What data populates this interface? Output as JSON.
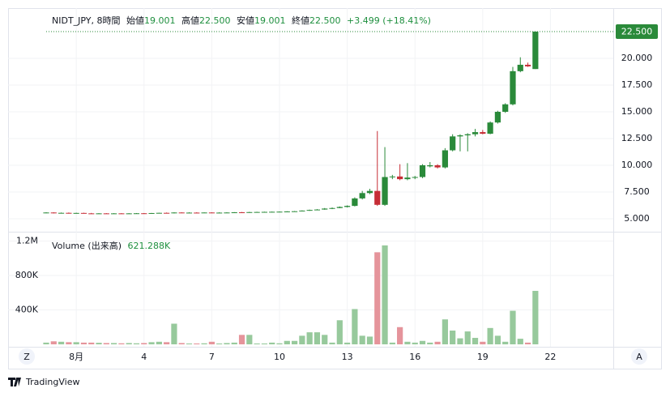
{
  "header": {
    "symbol": "NIDT_JPY, 8時間",
    "open_label": "始値",
    "open": "19.001",
    "high_label": "高値",
    "high": "22.500",
    "low_label": "安値",
    "low": "19.001",
    "close_label": "終値",
    "close": "22.500",
    "change": "+3.499 (+18.41%)"
  },
  "volume_legend": {
    "label": "Volume (出来高)",
    "value": "621.288K"
  },
  "buttons": {
    "left": "Z",
    "right": "A"
  },
  "brand": "TradingView",
  "chart_data": {
    "type": "candlestick",
    "categories": [
      null,
      null,
      null,
      null,
      "8月",
      null,
      null,
      null,
      null,
      null,
      null,
      null,
      null,
      "4",
      null,
      null,
      null,
      null,
      null,
      null,
      null,
      null,
      "7",
      null,
      null,
      null,
      null,
      null,
      null,
      null,
      null,
      "10",
      null,
      null,
      null,
      null,
      null,
      null,
      null,
      null,
      "13",
      null,
      null,
      null,
      null,
      null,
      null,
      null,
      null,
      "16",
      null,
      null,
      null,
      null,
      null,
      null,
      null,
      null,
      "19",
      null,
      null,
      null,
      null,
      null,
      null,
      null,
      null,
      "22"
    ],
    "open": [
      5.56,
      5.58,
      5.52,
      5.55,
      5.5,
      5.54,
      5.5,
      5.48,
      5.5,
      5.48,
      5.5,
      5.49,
      5.5,
      5.51,
      5.5,
      5.53,
      5.55,
      5.54,
      5.58,
      5.56,
      5.57,
      5.55,
      5.58,
      5.55,
      5.57,
      5.58,
      5.6,
      5.57,
      5.62,
      5.63,
      5.64,
      5.65,
      5.66,
      5.68,
      5.7,
      5.76,
      5.82,
      5.86,
      5.95,
      6.0,
      6.1,
      6.2,
      6.9,
      7.4,
      7.6,
      6.3,
      8.9,
      8.95,
      8.7,
      8.85,
      8.9,
      9.9,
      10.0,
      9.8,
      11.4,
      12.7,
      12.8,
      12.9,
      13.1,
      12.95,
      14.0,
      15.0,
      15.7,
      18.8,
      19.4,
      19.001,
      null,
      null
    ],
    "high": [
      5.6,
      5.6,
      5.58,
      5.58,
      5.56,
      5.56,
      5.54,
      5.52,
      5.52,
      5.52,
      5.52,
      5.52,
      5.53,
      5.53,
      5.54,
      5.56,
      5.58,
      5.6,
      5.6,
      5.6,
      5.6,
      5.59,
      5.6,
      5.6,
      5.6,
      5.62,
      5.63,
      5.64,
      5.65,
      5.66,
      5.67,
      5.68,
      5.7,
      5.72,
      5.78,
      5.85,
      5.9,
      6.0,
      6.05,
      6.15,
      6.25,
      7.0,
      7.6,
      7.8,
      13.2,
      11.7,
      9.1,
      10.1,
      10.2,
      9.0,
      10.1,
      10.3,
      10.1,
      11.6,
      12.9,
      12.9,
      13.0,
      13.4,
      13.3,
      14.1,
      15.1,
      15.8,
      19.2,
      20.1,
      19.6,
      22.5,
      null,
      null
    ],
    "low": [
      5.52,
      5.5,
      5.5,
      5.48,
      5.48,
      5.48,
      5.46,
      5.46,
      5.46,
      5.45,
      5.47,
      5.46,
      5.48,
      5.48,
      5.48,
      5.5,
      5.52,
      5.5,
      5.54,
      5.53,
      5.54,
      5.53,
      5.54,
      5.53,
      5.55,
      5.55,
      5.55,
      5.55,
      5.59,
      5.6,
      5.61,
      5.62,
      5.63,
      5.65,
      5.68,
      5.74,
      5.8,
      5.84,
      5.9,
      5.98,
      6.05,
      6.15,
      6.8,
      7.3,
      6.2,
      6.2,
      8.7,
      8.6,
      8.6,
      8.7,
      8.8,
      9.8,
      9.7,
      9.7,
      11.3,
      11.3,
      11.3,
      12.7,
      12.9,
      12.9,
      13.9,
      14.9,
      15.6,
      18.7,
      19.2,
      19.001,
      null,
      null
    ],
    "close": [
      5.58,
      5.52,
      5.55,
      5.5,
      5.54,
      5.5,
      5.48,
      5.5,
      5.48,
      5.5,
      5.49,
      5.5,
      5.51,
      5.5,
      5.53,
      5.55,
      5.54,
      5.58,
      5.56,
      5.57,
      5.55,
      5.58,
      5.55,
      5.57,
      5.58,
      5.6,
      5.57,
      5.62,
      5.63,
      5.64,
      5.65,
      5.66,
      5.68,
      5.7,
      5.76,
      5.82,
      5.86,
      5.95,
      6.0,
      6.1,
      6.2,
      6.9,
      7.4,
      7.6,
      6.3,
      8.9,
      8.95,
      8.7,
      8.85,
      8.9,
      10.0,
      10.0,
      9.8,
      11.4,
      12.7,
      12.8,
      12.9,
      13.1,
      12.95,
      14.0,
      15.0,
      15.7,
      18.8,
      19.4,
      19.25,
      22.5,
      null,
      null
    ],
    "volume": [
      20000,
      35000,
      30000,
      25000,
      25000,
      20000,
      20000,
      18000,
      15000,
      15000,
      12000,
      15000,
      12000,
      15000,
      25000,
      30000,
      25000,
      240000,
      15000,
      10000,
      10000,
      12000,
      30000,
      10000,
      15000,
      20000,
      110000,
      110000,
      10000,
      10000,
      20000,
      12000,
      40000,
      40000,
      100000,
      140000,
      140000,
      110000,
      20000,
      280000,
      20000,
      410000,
      100000,
      90000,
      1070000,
      1150000,
      20000,
      200000,
      30000,
      20000,
      40000,
      20000,
      30000,
      290000,
      160000,
      70000,
      150000,
      75000,
      30000,
      190000,
      100000,
      30000,
      390000,
      65000,
      20000,
      621288,
      null,
      null
    ],
    "up_color": "#2a8a3a",
    "down_color": "#c62d36",
    "volume_up_color": "#97c99c",
    "volume_down_color": "#e5949b",
    "ylim": [
      3.86,
      24.7
    ],
    "yticks": [
      {
        "value": 5,
        "label": "5.000"
      },
      {
        "value": 7.5,
        "label": "7.500"
      },
      {
        "value": 10,
        "label": "10.000"
      },
      {
        "value": 12.5,
        "label": "12.500"
      },
      {
        "value": 15,
        "label": "15.000"
      },
      {
        "value": 17.5,
        "label": "17.500"
      },
      {
        "value": 20,
        "label": "20.000"
      }
    ],
    "last_price": {
      "value": 22.5,
      "label": "22.500"
    },
    "volume_ylim": [
      0,
      1290000
    ],
    "volume_yticks": [
      {
        "value": 400000,
        "label": "400K"
      },
      {
        "value": 800000,
        "label": "800K"
      },
      {
        "value": 1200000,
        "label": "1.2M"
      }
    ],
    "grid": true
  }
}
